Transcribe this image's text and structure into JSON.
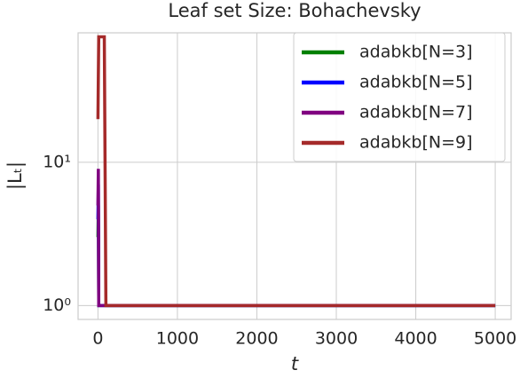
{
  "chart_data": {
    "type": "line",
    "title": "Leaf set Size: Bohachevsky",
    "xlabel": "t",
    "ylabel": "|Lₜ|",
    "x": [
      0,
      5,
      10,
      40,
      80,
      100,
      5000
    ],
    "series": [
      {
        "name": "adabkb[N=3]",
        "color": "#008000",
        "values": [
          3,
          5,
          1,
          1,
          1,
          1,
          1
        ]
      },
      {
        "name": "adabkb[N=5]",
        "color": "#0000ff",
        "values": [
          4,
          7,
          1,
          1,
          1,
          1,
          1
        ]
      },
      {
        "name": "adabkb[N=7]",
        "color": "#800080",
        "values": [
          5,
          9,
          1,
          1,
          1,
          1,
          1
        ]
      },
      {
        "name": "adabkb[N=9]",
        "color": "#a52a2a",
        "values": [
          20,
          40,
          75,
          75,
          75,
          1,
          1
        ]
      }
    ],
    "xlim": [
      -250,
      5200
    ],
    "xticks": [
      0,
      1000,
      2000,
      3000,
      4000,
      5000
    ],
    "ylim": [
      0.8,
      80
    ],
    "yticks": [
      {
        "value": 1,
        "label": "10⁰"
      },
      {
        "value": 10,
        "label": "10¹"
      }
    ],
    "yscale": "log",
    "grid": true,
    "legend": "upper right"
  }
}
